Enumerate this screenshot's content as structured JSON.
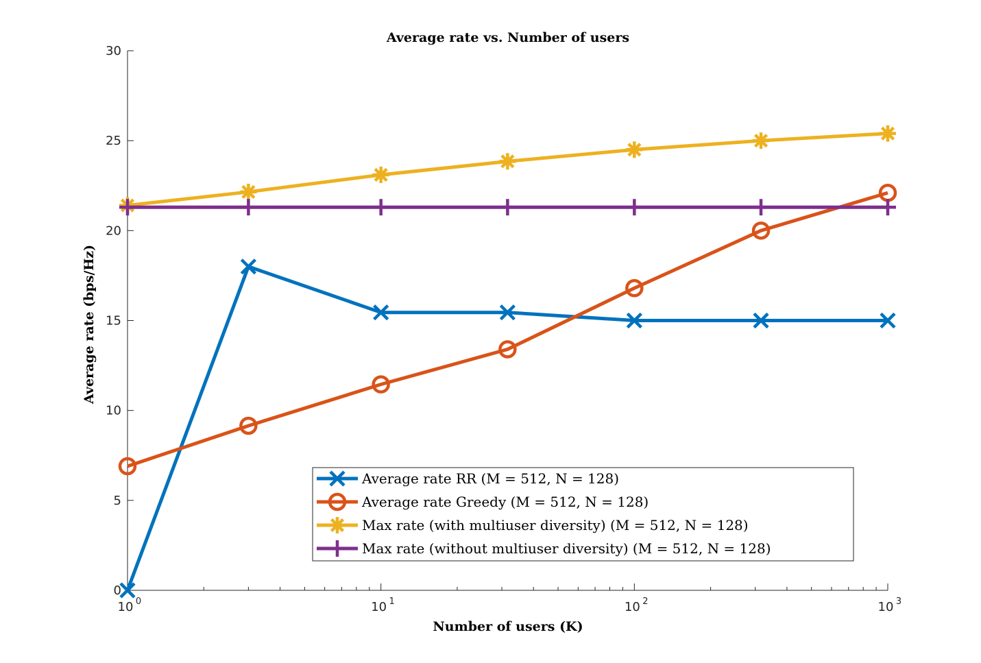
{
  "chart_data": {
    "type": "line",
    "title": "Average rate vs. Number of users",
    "xlabel": "Number of users (K)",
    "ylabel": "Average rate (bps/Hz)",
    "xscale": "log",
    "xlim": [
      1,
      1000
    ],
    "ylim": [
      0,
      30
    ],
    "x_ticks": [
      {
        "value": 1,
        "base": "10",
        "exp": "0"
      },
      {
        "value": 10,
        "base": "10",
        "exp": "1"
      },
      {
        "value": 100,
        "base": "10",
        "exp": "2"
      },
      {
        "value": 1000,
        "base": "10",
        "exp": "3"
      }
    ],
    "y_ticks": [
      0,
      5,
      10,
      15,
      20,
      25,
      30
    ],
    "y_tick_labels": [
      "0",
      "5",
      "10",
      "15",
      "20",
      "25",
      "30"
    ],
    "grid": false,
    "legend_position": "bottom-right",
    "x": [
      1,
      3,
      10,
      31.6,
      100,
      316,
      1000
    ],
    "series": [
      {
        "name": "Average rate RR (M = 512, N = 128)",
        "color": "#0072BD",
        "marker": "x",
        "values": [
          0,
          18.0,
          15.45,
          15.45,
          15.0,
          15.0,
          15.0
        ]
      },
      {
        "name": "Average rate Greedy (M = 512, N = 128)",
        "color": "#D95319",
        "marker": "o",
        "values": [
          6.9,
          9.15,
          11.45,
          13.4,
          16.8,
          20.0,
          22.1
        ]
      },
      {
        "name": "Max rate (with multiuser diversity) (M = 512, N = 128)",
        "color": "#EDB120",
        "marker": "*",
        "values": [
          21.4,
          22.15,
          23.1,
          23.85,
          24.5,
          25.0,
          25.4
        ]
      },
      {
        "name": "Max rate (without multiuser diversity) (M = 512, N = 128)",
        "color": "#7E2F8E",
        "marker": "+",
        "values": [
          21.3,
          21.3,
          21.3,
          21.3,
          21.3,
          21.3,
          21.3
        ]
      }
    ]
  }
}
